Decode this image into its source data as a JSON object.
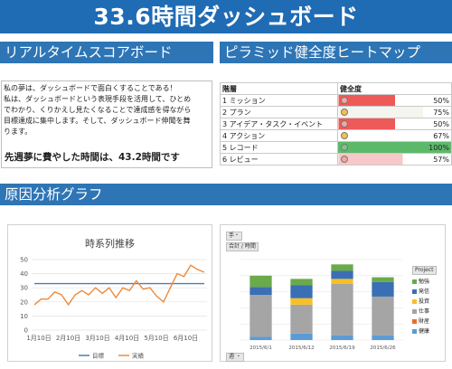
{
  "header": {
    "title": "33.6時間ダッシュボード"
  },
  "sections": {
    "realtime": "リアルタイムスコアボード",
    "pyramid": "ピラミッド健全度ヒートマップ",
    "cause": "原因分析グラフ"
  },
  "scoreboard": {
    "lines": [
      "私の夢は、ダッシュボードで面白くすることである！",
      "私は、ダッシュボードという表現手段を活用して、ひとめ",
      "でわかり、くりかえし見たくなることで達成感を得ながら",
      "目標達成に集中します。そして、ダッシュボード伸聞を舞",
      "ります。"
    ],
    "summary": "先週夢に費やした時間は、43.2時間です"
  },
  "pyramid": {
    "headers": {
      "level": "階層",
      "health": "健全度"
    },
    "rows": [
      {
        "name": "1 ミッション",
        "value": "50%",
        "fill": 0.5,
        "bg": "#ee5a58",
        "dot": "#f3a6a0"
      },
      {
        "name": "2 プラン",
        "value": "75%",
        "fill": 0.75,
        "bg": "#f5f5ef",
        "dot": "#f4c04c"
      },
      {
        "name": "3 アイデア・タスク・イベント",
        "value": "50%",
        "fill": 0.5,
        "bg": "#ee5a58",
        "dot": "#f3a6a0"
      },
      {
        "name": "4 アクション",
        "value": "67%",
        "fill": 0.67,
        "bg": "#ffffff",
        "dot": "#f4c04c"
      },
      {
        "name": "5 レコード",
        "value": "100%",
        "fill": 1.0,
        "bg": "#5db96a",
        "dot": "#78c781"
      },
      {
        "name": "6 レビュー",
        "value": "57%",
        "fill": 0.57,
        "bg": "#f7c8c8",
        "dot": "#f3a6a0"
      }
    ]
  },
  "chart_data": [
    {
      "type": "line",
      "title": "時系列推移",
      "x_ticks": [
        "1月10日",
        "2月10日",
        "3月10日",
        "4月10日",
        "5月10日",
        "6月10日"
      ],
      "ylim": [
        0,
        50
      ],
      "y_ticks": [
        0,
        10,
        20,
        30,
        40,
        50
      ],
      "grid": true,
      "legend": "bottom",
      "series": [
        {
          "name": "目標",
          "color": "#4a7ebb",
          "values": [
            33,
            33,
            33,
            33,
            33,
            33,
            33,
            33,
            33,
            33,
            33,
            33,
            33,
            33,
            33,
            33,
            33,
            33,
            33,
            33,
            33,
            33,
            33,
            33,
            33,
            33
          ]
        },
        {
          "name": "実績",
          "color": "#ee8a3a",
          "values": [
            18,
            22,
            22,
            27,
            25,
            18,
            25,
            28,
            25,
            30,
            26,
            30,
            23,
            30,
            28,
            35,
            29,
            30,
            24,
            20,
            30,
            40,
            38,
            46,
            43,
            41
          ]
        }
      ]
    },
    {
      "type": "bar",
      "stacked": true,
      "categories": [
        "2015/6/1",
        "2015/6/12",
        "2015/6/19",
        "2015/6/26"
      ],
      "legend": "right",
      "legend_title": "Project",
      "series": [
        {
          "name": "勉強",
          "color": "#6aaa4a",
          "values": [
            7,
            4,
            4,
            3
          ]
        },
        {
          "name": "発信",
          "color": "#3a6fb5",
          "values": [
            5,
            8,
            5,
            9
          ]
        },
        {
          "name": "投資",
          "color": "#f7c025",
          "values": [
            0,
            4,
            3,
            0
          ]
        },
        {
          "name": "仕事",
          "color": "#a5a5a5",
          "values": [
            26,
            18,
            32,
            24
          ]
        },
        {
          "name": "財産",
          "color": "#e6702a",
          "values": [
            0,
            0,
            0,
            0
          ]
        },
        {
          "name": "健康",
          "color": "#5b9bd5",
          "values": [
            2,
            4,
            3,
            3
          ]
        }
      ]
    }
  ],
  "controls": {
    "top_chip1": "手・",
    "top_chip2": "合計 / 時間",
    "bottom_chip": "週 ・"
  }
}
